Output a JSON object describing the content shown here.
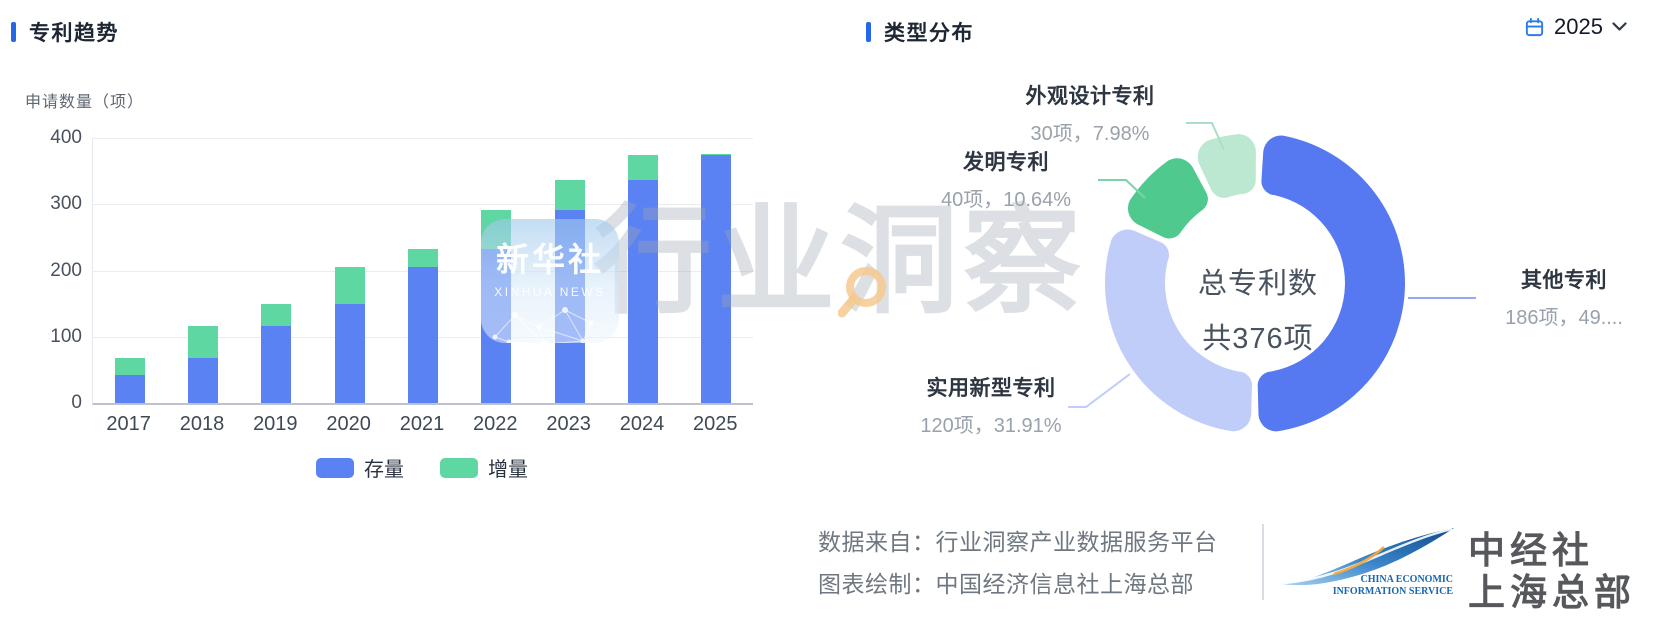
{
  "left_chart": {
    "title": "专利趋势",
    "y_axis_label": "申请数量（项）",
    "chart_data": {
      "type": "bar",
      "stacked": true,
      "title": "专利趋势",
      "ylabel": "申请数量（项）",
      "categories": [
        "2017",
        "2018",
        "2019",
        "2020",
        "2021",
        "2022",
        "2023",
        "2024",
        "2025"
      ],
      "series": [
        {
          "name": "存量",
          "color": "#5B82F3",
          "values": [
            42,
            68,
            117,
            150,
            205,
            232,
            292,
            337,
            374
          ]
        },
        {
          "name": "增量",
          "color": "#5FD7A2",
          "values": [
            26,
            49,
            33,
            55,
            27,
            60,
            45,
            37,
            2
          ]
        }
      ],
      "ylim": [
        0,
        400
      ],
      "yticks": [
        0,
        100,
        200,
        300,
        400
      ],
      "grid": true,
      "legend_position": "bottom"
    }
  },
  "right_chart": {
    "title": "类型分布",
    "year_selector": {
      "value": "2025"
    },
    "chart_data": {
      "type": "pie",
      "donut": true,
      "total": 376,
      "center_label_line1": "总专利数",
      "center_label_line2": "共376项",
      "slices": [
        {
          "name": "其他专利",
          "value": 186,
          "percent": "49....",
          "amount_label": "186项，49....",
          "color": "#5679F1",
          "leader_color": "#94A9F4"
        },
        {
          "name": "实用新型专利",
          "value": 120,
          "percent": "31.91%",
          "amount_label": "120项，31.91%",
          "color": "#BFCDF8",
          "leader_color": "#BFCDF8"
        },
        {
          "name": "发明专利",
          "value": 40,
          "percent": "10.64%",
          "amount_label": "40项，10.64%",
          "color": "#4FC98E",
          "leader_color": "#7BD4A9"
        },
        {
          "name": "外观设计专利",
          "value": 30,
          "percent": "7.98%",
          "amount_label": "30项，7.98%",
          "color": "#BCE8D2",
          "leader_color": "#A8DFC6"
        }
      ]
    }
  },
  "watermarks": {
    "xinhua_badge": {
      "line1": "新华社",
      "line2": "XINHUA NEWS"
    },
    "industry_text": "行业洞察"
  },
  "footer": {
    "source_line": "数据来自：行业洞察产业数据服务平台",
    "credit_line": "图表绘制：中国经济信息社上海总部",
    "logo": {
      "cn_line1": "中经社",
      "cn_line2": "上海总部",
      "en_line1": "CHINA ECONOMIC",
      "en_line2": "INFORMATION SERVICE"
    }
  }
}
